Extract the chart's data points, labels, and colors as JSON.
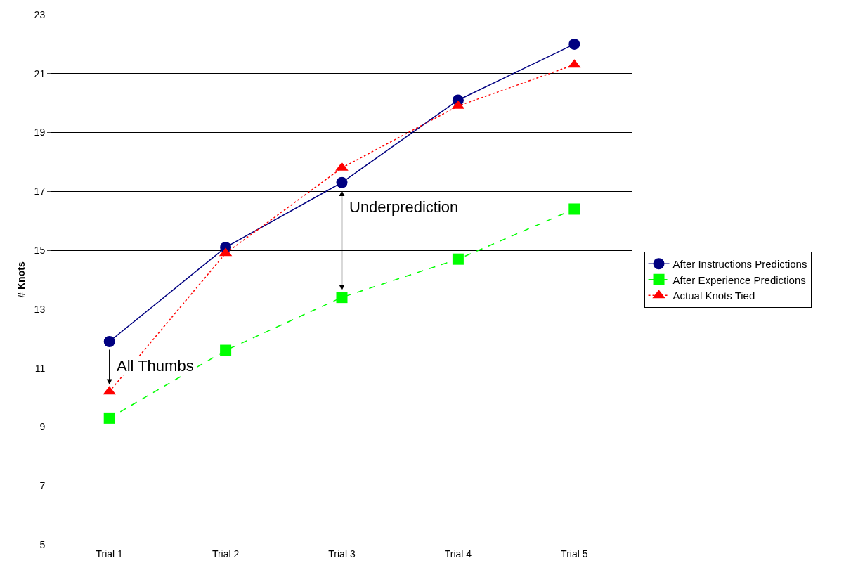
{
  "chart_data": {
    "type": "line",
    "ylabel": "# Knots",
    "categories": [
      "Trial 1",
      "Trial 2",
      "Trial 3",
      "Trial 4",
      "Trial 5"
    ],
    "series": [
      {
        "name": "After Instructions Predictions",
        "color": "#000080",
        "marker": "circle",
        "line_style": "solid",
        "values": [
          11.9,
          15.1,
          17.3,
          20.1,
          22.0
        ]
      },
      {
        "name": "After Experience Predictions",
        "color": "#00ff00",
        "marker": "square",
        "line_style": "dashed",
        "values": [
          9.3,
          11.6,
          13.4,
          14.7,
          16.4
        ]
      },
      {
        "name": "Actual Knots Tied",
        "color": "#ff0000",
        "marker": "triangle",
        "line_style": "dotted",
        "values": [
          10.2,
          14.9,
          17.8,
          19.9,
          21.3
        ]
      }
    ],
    "ylim": [
      5,
      23
    ],
    "yticks": [
      5,
      7,
      9,
      11,
      13,
      15,
      17,
      19,
      21,
      23
    ],
    "grid": "y",
    "legend": "right",
    "annotations": [
      {
        "text": "All Thumbs",
        "x": "Trial 1",
        "y": 10.2
      },
      {
        "text": "Underprediction",
        "x": "Trial 3",
        "y": 13.4
      }
    ]
  }
}
